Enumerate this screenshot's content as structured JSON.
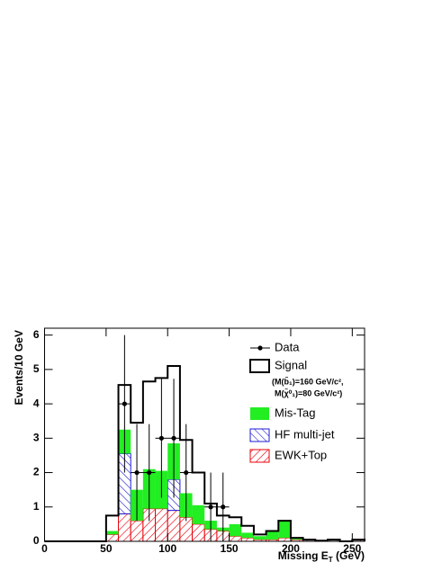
{
  "chart_data": {
    "type": "stacked-histogram",
    "y_label": "Events/10 GeV",
    "x_label": [
      "Missing E",
      "T",
      " (GeV)"
    ],
    "bins": [
      0,
      10,
      20,
      30,
      40,
      50,
      60,
      70,
      80,
      90,
      100,
      110,
      120,
      130,
      140,
      150,
      160,
      170,
      180,
      190,
      200,
      210,
      220,
      230,
      240,
      250,
      260
    ],
    "xlim": [
      0,
      260
    ],
    "ylim": [
      0,
      6.2
    ],
    "xticks": [
      0,
      50,
      100,
      150,
      200,
      250
    ],
    "yticks": [
      0,
      1,
      2,
      3,
      4,
      5,
      6
    ],
    "series": [
      {
        "name": "EWK+Top",
        "color": "#e8000b",
        "hatch": "/",
        "values": [
          0,
          0,
          0,
          0,
          0,
          0.2,
          0.8,
          0.6,
          0.95,
          0.95,
          0.9,
          0.7,
          0.5,
          0.35,
          0.3,
          0.15,
          0.1,
          0.05,
          0.05,
          0.1,
          0.05,
          0.05,
          0.02,
          0.05,
          0,
          0.05
        ]
      },
      {
        "name": "HF multi-jet",
        "color": "#1c1cd4",
        "hatch": "\\",
        "values": [
          0,
          0,
          0,
          0,
          0,
          0,
          1.75,
          0,
          0,
          0,
          0.9,
          0,
          0,
          0,
          0,
          0,
          0,
          0,
          0,
          0,
          0,
          0,
          0,
          0,
          0,
          0
        ]
      },
      {
        "name": "Mis-Tag",
        "color": "#22ee22",
        "values": [
          0,
          0,
          0,
          0,
          0,
          0.1,
          0.7,
          0.9,
          1.15,
          1.1,
          1.05,
          0.7,
          0.55,
          0.25,
          0.1,
          0.35,
          0.15,
          0.1,
          0.25,
          0.5,
          0.05,
          0,
          0,
          0,
          0,
          0
        ]
      },
      {
        "name": "Signal",
        "color": "#000000",
        "outline": true,
        "values": [
          0,
          0,
          0,
          0,
          0,
          0.45,
          1.3,
          1.95,
          2.55,
          2.7,
          2.25,
          1.55,
          0.95,
          0.5,
          0.35,
          0.2,
          0.2,
          0.05,
          0,
          0,
          0,
          0,
          0,
          0,
          0,
          0
        ],
        "note": [
          "(M(b̃₁)=160 GeV/c²,",
          "M(χ̃⁰₁)=80 GeV/c²)"
        ]
      }
    ],
    "data": {
      "name": "Data",
      "color": "#000000",
      "values": [
        null,
        null,
        null,
        null,
        null,
        null,
        4,
        2,
        2,
        3,
        3,
        2,
        null,
        1,
        1,
        null,
        null,
        null,
        null,
        null,
        null,
        null,
        null,
        null,
        null,
        null
      ],
      "yerr": [
        null,
        null,
        null,
        null,
        null,
        null,
        2,
        1.41,
        1.41,
        1.73,
        1.73,
        1.41,
        null,
        1,
        1,
        null,
        null,
        null,
        null,
        null,
        null,
        null,
        null,
        null,
        null,
        null
      ]
    }
  }
}
